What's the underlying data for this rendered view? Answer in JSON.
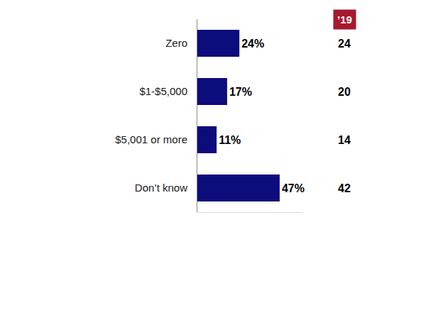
{
  "chart_data": {
    "type": "bar",
    "orientation": "horizontal",
    "categories": [
      "Zero",
      "$1-$5,000",
      "$5,001 or more",
      "Don’t know"
    ],
    "values": [
      24,
      17,
      11,
      47
    ],
    "value_labels": [
      "24%",
      "17%",
      "11%",
      "47%"
    ],
    "color": "#0c0c7c",
    "data_labels": true,
    "tick_labels": "y",
    "xlim": [
      0,
      60
    ],
    "grid": false,
    "comparison": {
      "label": "’19",
      "color": "#a6192e",
      "values": [
        24,
        20,
        14,
        42
      ]
    }
  }
}
